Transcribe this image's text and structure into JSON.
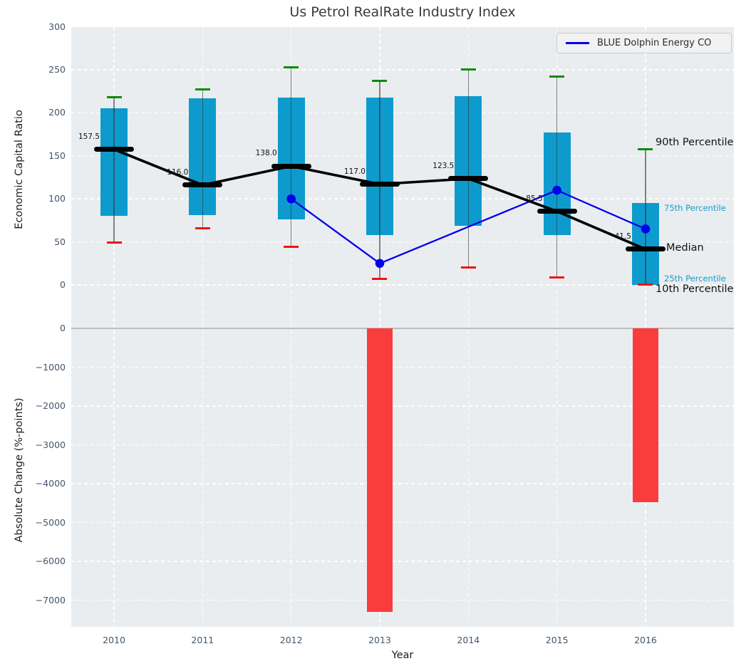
{
  "title": "Us Petrol RealRate Industry Index",
  "xlabel": "Year",
  "top": {
    "ylabel": "Economic Capital Ratio"
  },
  "bottom": {
    "ylabel": "Absolute Change (%-points)"
  },
  "legend": {
    "label": "BLUE Dolphin Energy CO"
  },
  "side_labels": {
    "p90": "90th Percentile",
    "p75": "75th Percentile",
    "median": "Median",
    "p25": "25th Percentile",
    "p10": "10th Percentile"
  },
  "colors": {
    "box_fill": "#0d9bce",
    "whisker_top_cap": "#068d06",
    "whisker_bottom_cap": "#f21111",
    "median": "#000000",
    "company_line": "#0000ee",
    "change_bar": "#fa3c3c",
    "axes_background": "#eaedef",
    "grid": "#ffffff",
    "tick_label": "#445569"
  },
  "chart_data": [
    {
      "type": "box",
      "title": "Us Petrol RealRate Industry Index",
      "xlabel": "Year",
      "ylabel": "Economic Capital Ratio",
      "ylim": [
        -31,
        300
      ],
      "yticks": [
        0,
        50,
        100,
        150,
        200,
        250,
        300
      ],
      "grid": "white dashed on light gray",
      "legend_position": "upper right",
      "categories": [
        "2010",
        "2011",
        "2012",
        "2013",
        "2014",
        "2015",
        "2016"
      ],
      "series": [
        {
          "name": "90th Percentile",
          "role": "whisker-top",
          "color": "#068d06",
          "values": [
            218,
            227,
            253,
            237,
            250,
            242,
            158
          ]
        },
        {
          "name": "75th Percentile",
          "role": "box-top",
          "color": "#0d9bce",
          "values": [
            205,
            217,
            218,
            218,
            219,
            177,
            95
          ]
        },
        {
          "name": "Median",
          "role": "median",
          "color": "#000000",
          "values": [
            157.5,
            116.0,
            138.0,
            117.0,
            123.5,
            85.5,
            41.5
          ]
        },
        {
          "name": "25th Percentile",
          "role": "box-bottom",
          "color": "#0d9bce",
          "values": [
            80,
            81,
            76,
            58,
            69,
            58,
            0
          ]
        },
        {
          "name": "10th Percentile",
          "role": "whisker-bottom",
          "color": "#f21111",
          "values": [
            49,
            66,
            44,
            7,
            20,
            9,
            0.5
          ]
        },
        {
          "name": "BLUE Dolphin Energy CO",
          "role": "line",
          "color": "#0000ee",
          "x": [
            "2012",
            "2013",
            "2015",
            "2016"
          ],
          "values": [
            100,
            25,
            110,
            65
          ]
        }
      ],
      "median_labels": [
        "157.5",
        "116.0",
        "138.0",
        "117.0",
        "123.5",
        "85.5",
        "41.5"
      ]
    },
    {
      "type": "bar",
      "xlabel": "Year",
      "ylabel": "Absolute Change (%-points)",
      "ylim": [
        -7680,
        440
      ],
      "yticks": [
        0,
        -1000,
        -2000,
        -3000,
        -4000,
        -5000,
        -6000,
        -7000
      ],
      "categories": [
        "2010",
        "2011",
        "2012",
        "2013",
        "2014",
        "2015",
        "2016"
      ],
      "values": [
        null,
        null,
        null,
        -7300,
        null,
        null,
        -4480
      ],
      "bar_color": "#fa3c3c"
    }
  ]
}
